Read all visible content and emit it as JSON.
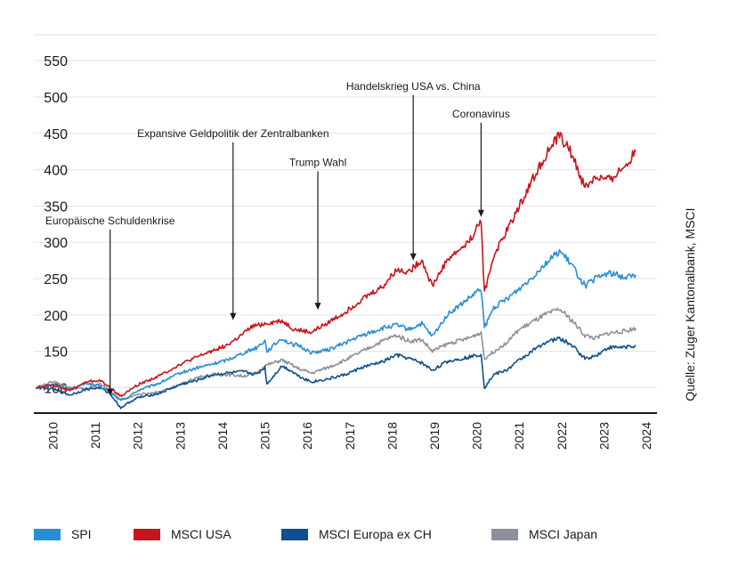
{
  "chart_data": {
    "type": "line",
    "ylim": [
      65,
      560
    ],
    "yticks": [
      100,
      150,
      200,
      250,
      300,
      350,
      400,
      450,
      500,
      550
    ],
    "xlim": [
      2009.55,
      2024.25
    ],
    "xticks": [
      "2010",
      "2011",
      "2012",
      "2013",
      "2014",
      "2015",
      "2016",
      "2017",
      "2018",
      "2019",
      "2020",
      "2021",
      "2022",
      "2023",
      "2024"
    ],
    "grid": true,
    "legend_position": "bottom",
    "source": "Quelle: Zuger Kantonalbank, MSCI",
    "series": [
      {
        "name": "SPI",
        "color": "#2a8fd0",
        "points": [
          [
            2009.6,
            100
          ],
          [
            2010.0,
            104
          ],
          [
            2010.4,
            98
          ],
          [
            2010.8,
            106
          ],
          [
            2011.1,
            102
          ],
          [
            2011.35,
            94
          ],
          [
            2011.6,
            82
          ],
          [
            2011.8,
            88
          ],
          [
            2012.0,
            96
          ],
          [
            2012.5,
            106
          ],
          [
            2013.0,
            120
          ],
          [
            2013.4,
            127
          ],
          [
            2013.8,
            133
          ],
          [
            2014.1,
            138
          ],
          [
            2014.5,
            148
          ],
          [
            2014.8,
            155
          ],
          [
            2015.0,
            165
          ],
          [
            2015.05,
            150
          ],
          [
            2015.4,
            168
          ],
          [
            2015.6,
            160
          ],
          [
            2015.8,
            158
          ],
          [
            2016.1,
            148
          ],
          [
            2016.5,
            152
          ],
          [
            2016.9,
            162
          ],
          [
            2017.3,
            172
          ],
          [
            2017.8,
            182
          ],
          [
            2018.1,
            186
          ],
          [
            2018.4,
            180
          ],
          [
            2018.7,
            188
          ],
          [
            2018.95,
            170
          ],
          [
            2019.3,
            200
          ],
          [
            2019.8,
            222
          ],
          [
            2020.1,
            236
          ],
          [
            2020.18,
            182
          ],
          [
            2020.4,
            210
          ],
          [
            2020.7,
            222
          ],
          [
            2021.0,
            236
          ],
          [
            2021.3,
            252
          ],
          [
            2021.6,
            270
          ],
          [
            2021.95,
            288
          ],
          [
            2022.25,
            268
          ],
          [
            2022.55,
            240
          ],
          [
            2022.8,
            250
          ],
          [
            2023.1,
            258
          ],
          [
            2023.5,
            252
          ],
          [
            2023.75,
            255
          ]
        ]
      },
      {
        "name": "MSCI USA",
        "color": "#c8141c",
        "points": [
          [
            2009.6,
            100
          ],
          [
            2010.0,
            104
          ],
          [
            2010.4,
            96
          ],
          [
            2010.8,
            108
          ],
          [
            2011.1,
            110
          ],
          [
            2011.35,
            100
          ],
          [
            2011.6,
            88
          ],
          [
            2011.8,
            96
          ],
          [
            2012.0,
            104
          ],
          [
            2012.5,
            116
          ],
          [
            2013.0,
            132
          ],
          [
            2013.4,
            142
          ],
          [
            2013.8,
            152
          ],
          [
            2014.1,
            158
          ],
          [
            2014.4,
            170
          ],
          [
            2014.7,
            184
          ],
          [
            2015.0,
            188
          ],
          [
            2015.4,
            192
          ],
          [
            2015.7,
            180
          ],
          [
            2016.1,
            176
          ],
          [
            2016.5,
            190
          ],
          [
            2016.9,
            204
          ],
          [
            2017.3,
            222
          ],
          [
            2017.8,
            240
          ],
          [
            2018.1,
            262
          ],
          [
            2018.4,
            260
          ],
          [
            2018.7,
            276
          ],
          [
            2018.95,
            240
          ],
          [
            2019.3,
            276
          ],
          [
            2019.8,
            300
          ],
          [
            2020.1,
            330
          ],
          [
            2020.18,
            230
          ],
          [
            2020.4,
            282
          ],
          [
            2020.7,
            315
          ],
          [
            2021.0,
            350
          ],
          [
            2021.3,
            385
          ],
          [
            2021.6,
            418
          ],
          [
            2021.95,
            448
          ],
          [
            2022.25,
            420
          ],
          [
            2022.55,
            375
          ],
          [
            2022.8,
            390
          ],
          [
            2023.1,
            385
          ],
          [
            2023.5,
            405
          ],
          [
            2023.75,
            425
          ]
        ]
      },
      {
        "name": "MSCI Europa ex CH",
        "color": "#0e4f8c",
        "points": [
          [
            2009.6,
            100
          ],
          [
            2010.0,
            98
          ],
          [
            2010.4,
            90
          ],
          [
            2010.8,
            98
          ],
          [
            2011.1,
            100
          ],
          [
            2011.35,
            92
          ],
          [
            2011.6,
            72
          ],
          [
            2011.8,
            80
          ],
          [
            2012.0,
            86
          ],
          [
            2012.5,
            92
          ],
          [
            2013.0,
            104
          ],
          [
            2013.4,
            110
          ],
          [
            2013.8,
            118
          ],
          [
            2014.1,
            120
          ],
          [
            2014.5,
            122
          ],
          [
            2014.8,
            118
          ],
          [
            2015.0,
            128
          ],
          [
            2015.05,
            105
          ],
          [
            2015.4,
            130
          ],
          [
            2015.6,
            124
          ],
          [
            2015.8,
            116
          ],
          [
            2016.1,
            108
          ],
          [
            2016.5,
            112
          ],
          [
            2016.9,
            118
          ],
          [
            2017.3,
            128
          ],
          [
            2017.8,
            136
          ],
          [
            2018.1,
            145
          ],
          [
            2018.4,
            140
          ],
          [
            2018.7,
            134
          ],
          [
            2018.95,
            124
          ],
          [
            2019.3,
            136
          ],
          [
            2019.8,
            142
          ],
          [
            2020.1,
            146
          ],
          [
            2020.18,
            100
          ],
          [
            2020.4,
            118
          ],
          [
            2020.7,
            124
          ],
          [
            2021.0,
            138
          ],
          [
            2021.3,
            150
          ],
          [
            2021.6,
            162
          ],
          [
            2021.95,
            168
          ],
          [
            2022.25,
            158
          ],
          [
            2022.55,
            140
          ],
          [
            2022.8,
            144
          ],
          [
            2023.1,
            155
          ],
          [
            2023.5,
            156
          ],
          [
            2023.75,
            158
          ]
        ]
      },
      {
        "name": "MSCI Japan",
        "color": "#8c9199",
        "points": [
          [
            2009.6,
            100
          ],
          [
            2010.0,
            108
          ],
          [
            2010.4,
            100
          ],
          [
            2010.8,
            98
          ],
          [
            2011.1,
            106
          ],
          [
            2011.35,
            95
          ],
          [
            2011.6,
            84
          ],
          [
            2011.8,
            86
          ],
          [
            2012.0,
            90
          ],
          [
            2012.5,
            94
          ],
          [
            2013.0,
            104
          ],
          [
            2013.4,
            114
          ],
          [
            2013.8,
            118
          ],
          [
            2014.1,
            118
          ],
          [
            2014.5,
            116
          ],
          [
            2014.8,
            120
          ],
          [
            2015.0,
            130
          ],
          [
            2015.4,
            138
          ],
          [
            2015.6,
            132
          ],
          [
            2015.8,
            126
          ],
          [
            2016.1,
            120
          ],
          [
            2016.5,
            128
          ],
          [
            2016.9,
            138
          ],
          [
            2017.3,
            150
          ],
          [
            2017.8,
            165
          ],
          [
            2018.1,
            172
          ],
          [
            2018.4,
            164
          ],
          [
            2018.7,
            166
          ],
          [
            2018.95,
            150
          ],
          [
            2019.3,
            160
          ],
          [
            2019.8,
            168
          ],
          [
            2020.1,
            176
          ],
          [
            2020.18,
            140
          ],
          [
            2020.4,
            150
          ],
          [
            2020.7,
            162
          ],
          [
            2021.0,
            180
          ],
          [
            2021.3,
            190
          ],
          [
            2021.6,
            200
          ],
          [
            2021.95,
            208
          ],
          [
            2022.25,
            192
          ],
          [
            2022.55,
            172
          ],
          [
            2022.8,
            168
          ],
          [
            2023.1,
            175
          ],
          [
            2023.5,
            178
          ],
          [
            2023.75,
            182
          ]
        ]
      }
    ],
    "annotations": [
      {
        "text": "Europäische Schuldenkrise",
        "x": 2011.35,
        "y": 84,
        "label_y": 325
      },
      {
        "text": "Expansive Geldpolitik der Zentralbanken",
        "x": 2014.25,
        "y": 188,
        "label_y": 445
      },
      {
        "text": "Trump Wahl",
        "x": 2016.25,
        "y": 202,
        "label_y": 405
      },
      {
        "text": "Handelskrieg USA vs. China",
        "x": 2018.5,
        "y": 270,
        "label_y": 510
      },
      {
        "text": "Coronavirus",
        "x": 2020.1,
        "y": 330,
        "label_y": 472
      }
    ]
  }
}
